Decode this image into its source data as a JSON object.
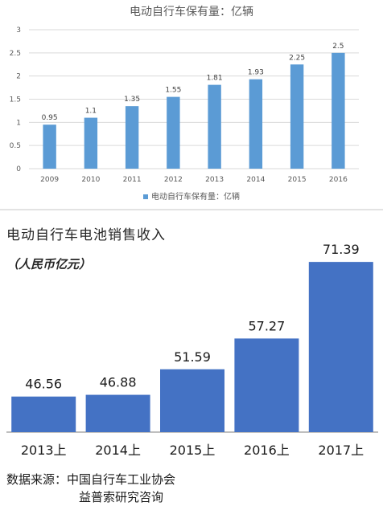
{
  "chart_data": [
    {
      "type": "bar",
      "title": "电动自行车保有量：亿辆",
      "categories": [
        "2009",
        "2010",
        "2011",
        "2012",
        "2013",
        "2014",
        "2015",
        "2016"
      ],
      "series": [
        {
          "name": "电动自行车保有量：亿辆",
          "values": [
            0.95,
            1.1,
            1.35,
            1.55,
            1.81,
            1.93,
            2.25,
            2.5
          ]
        }
      ],
      "data_labels": [
        "0.95",
        "1.1",
        "1.35",
        "1.55",
        "1.81",
        "1.93",
        "2.25",
        "2.5"
      ],
      "yticks": [
        "0",
        "0.5",
        "1",
        "1.5",
        "2",
        "2.5",
        "3"
      ],
      "ylim": [
        0,
        3
      ],
      "grid": true,
      "legend": "bottom",
      "bar_color": "#5B9BD5"
    },
    {
      "type": "bar",
      "title": "电动自行车电池销售收入",
      "unit": "（人民币亿元）",
      "categories": [
        "2013上",
        "2014上",
        "2015上",
        "2016上",
        "2017上"
      ],
      "values": [
        46.56,
        46.88,
        51.59,
        57.27,
        71.39
      ],
      "data_labels": [
        "46.56",
        "46.88",
        "51.59",
        "57.27",
        "71.39"
      ],
      "ylim": [
        40,
        72
      ],
      "grid": false,
      "bar_color": "#4472C4"
    }
  ],
  "source": {
    "label": "数据来源：",
    "line1": "中国自行车工业协会",
    "line2": "益普索研究咨询"
  }
}
